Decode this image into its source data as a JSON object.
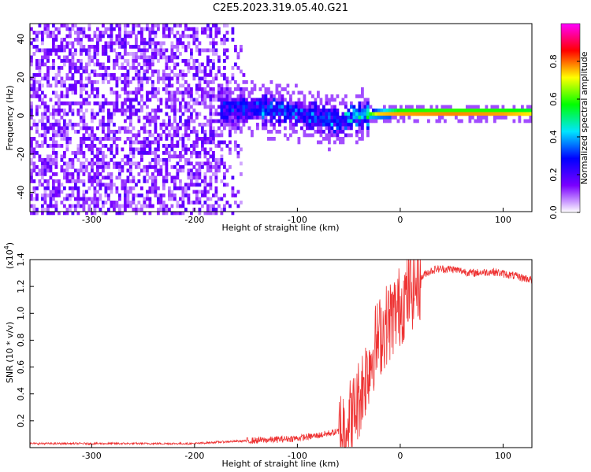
{
  "title": "C2E5.2023.319.05.40.G21",
  "chart_data": [
    {
      "type": "heatmap",
      "xlabel": "Height of straight line (km)",
      "ylabel": "Frequency (Hz)",
      "xlim": [
        -360,
        128
      ],
      "ylim": [
        -50,
        48
      ],
      "xticks": [
        -300,
        -200,
        -100,
        0,
        100
      ],
      "yticks": [
        -40,
        -20,
        0,
        20,
        40
      ],
      "colorbar": {
        "label": "Normalized spectral amplitude",
        "range": [
          0.0,
          1.0
        ],
        "ticks": [
          "0.0",
          "0.2",
          "0.4",
          "0.6",
          "0.8"
        ],
        "colormap": [
          "#ffffff",
          "#7a00ff",
          "#0000ff",
          "#00e5ff",
          "#00ff00",
          "#ffff00",
          "#ff0000",
          "#ff00ff"
        ]
      },
      "features": {
        "noise_region_x": [
          -360,
          -150
        ],
        "noise_amplitude": 0.15,
        "signal_band": [
          {
            "x": -175,
            "freq": 4,
            "amp": 0.35
          },
          {
            "x": -150,
            "freq": 4,
            "amp": 0.4
          },
          {
            "x": -120,
            "freq": 3,
            "amp": 0.4
          },
          {
            "x": -90,
            "freq": 0,
            "amp": 0.4
          },
          {
            "x": -60,
            "freq": -3,
            "amp": 0.4
          },
          {
            "x": -40,
            "freq": 0,
            "amp": 0.55
          },
          {
            "x": -20,
            "freq": 1,
            "amp": 0.75
          },
          {
            "x": 0,
            "freq": 1.5,
            "amp": 0.9
          },
          {
            "x": 50,
            "freq": 1.5,
            "amp": 0.92
          },
          {
            "x": 100,
            "freq": 1.5,
            "amp": 0.9
          },
          {
            "x": 128,
            "freq": 1.5,
            "amp": 0.85
          }
        ]
      }
    },
    {
      "type": "line",
      "xlabel": "Height of straight line (km)",
      "ylabel": "SNR (10 * v/v)",
      "yscale_label": "(x10",
      "yscale_exp": "4",
      "yscale_close": ")",
      "xlim": [
        -360,
        128
      ],
      "ylim": [
        0,
        1.4
      ],
      "xticks": [
        -300,
        -200,
        -100,
        0,
        100
      ],
      "yticks": [
        "0.2",
        "0.4",
        "0.6",
        "0.8",
        "1.0",
        "1.2",
        "1.4"
      ],
      "color": "#ee3333",
      "series": [
        {
          "x": [
            -360,
            -300,
            -250,
            -200,
            -180,
            -150,
            -120,
            -100,
            -80,
            -60,
            -45,
            -35,
            -25,
            -15,
            -5,
            5,
            15,
            25,
            35,
            50,
            70,
            90,
            110,
            128
          ],
          "y": [
            0.03,
            0.03,
            0.03,
            0.03,
            0.04,
            0.05,
            0.06,
            0.07,
            0.09,
            0.12,
            0.25,
            0.5,
            0.75,
            0.9,
            1.0,
            1.12,
            1.22,
            1.3,
            1.33,
            1.33,
            1.3,
            1.31,
            1.28,
            1.25
          ]
        }
      ]
    }
  ]
}
